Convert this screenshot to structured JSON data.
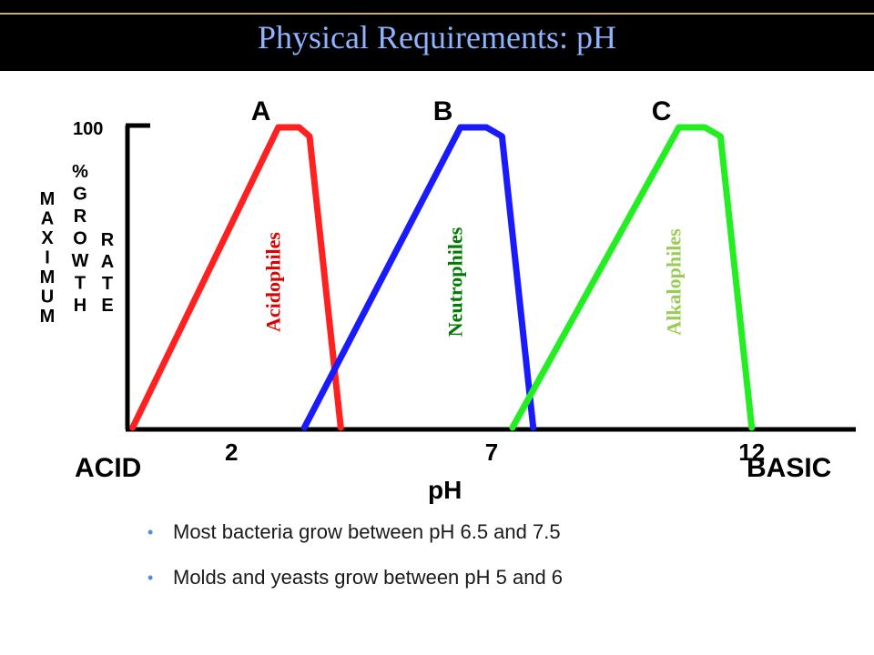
{
  "slide": {
    "title": "Physical Requirements: pH"
  },
  "chart_data": {
    "type": "line",
    "title": "",
    "xlabel": "pH",
    "ylabel_lines": [
      "MAXIMUM",
      "% GROWTH",
      "RATE"
    ],
    "y_max_label": "100",
    "xlim": [
      0,
      14
    ],
    "ylim": [
      0,
      100
    ],
    "x_end_labels": {
      "left": "ACID",
      "right": "BASIC"
    },
    "x_ticks": [
      {
        "value": 2,
        "label": "2"
      },
      {
        "value": 7,
        "label": "7"
      },
      {
        "value": 12,
        "label": "12"
      }
    ],
    "grid": false,
    "series": [
      {
        "name": "A",
        "label": "Acidophiles",
        "color": "#ff2020",
        "label_color": "#dd0000",
        "points": [
          [
            0.1,
            0
          ],
          [
            2.9,
            100
          ],
          [
            3.3,
            100
          ],
          [
            3.5,
            97
          ],
          [
            4.1,
            0
          ]
        ]
      },
      {
        "name": "B",
        "label": "Neutrophiles",
        "color": "#1a1aff",
        "label_color": "#007a00",
        "points": [
          [
            3.4,
            0
          ],
          [
            6.4,
            100
          ],
          [
            6.9,
            100
          ],
          [
            7.2,
            97
          ],
          [
            7.8,
            0
          ]
        ]
      },
      {
        "name": "C",
        "label": "Alkalophiles",
        "color": "#22ee22",
        "label_color": "#99cc55",
        "points": [
          [
            7.4,
            0
          ],
          [
            10.6,
            100
          ],
          [
            11.1,
            100
          ],
          [
            11.4,
            97
          ],
          [
            12.0,
            0
          ]
        ]
      }
    ]
  },
  "bullets": [
    "Most bacteria grow between pH 6.5 and 7.5",
    "Molds and yeasts grow between pH 5 and 6"
  ]
}
